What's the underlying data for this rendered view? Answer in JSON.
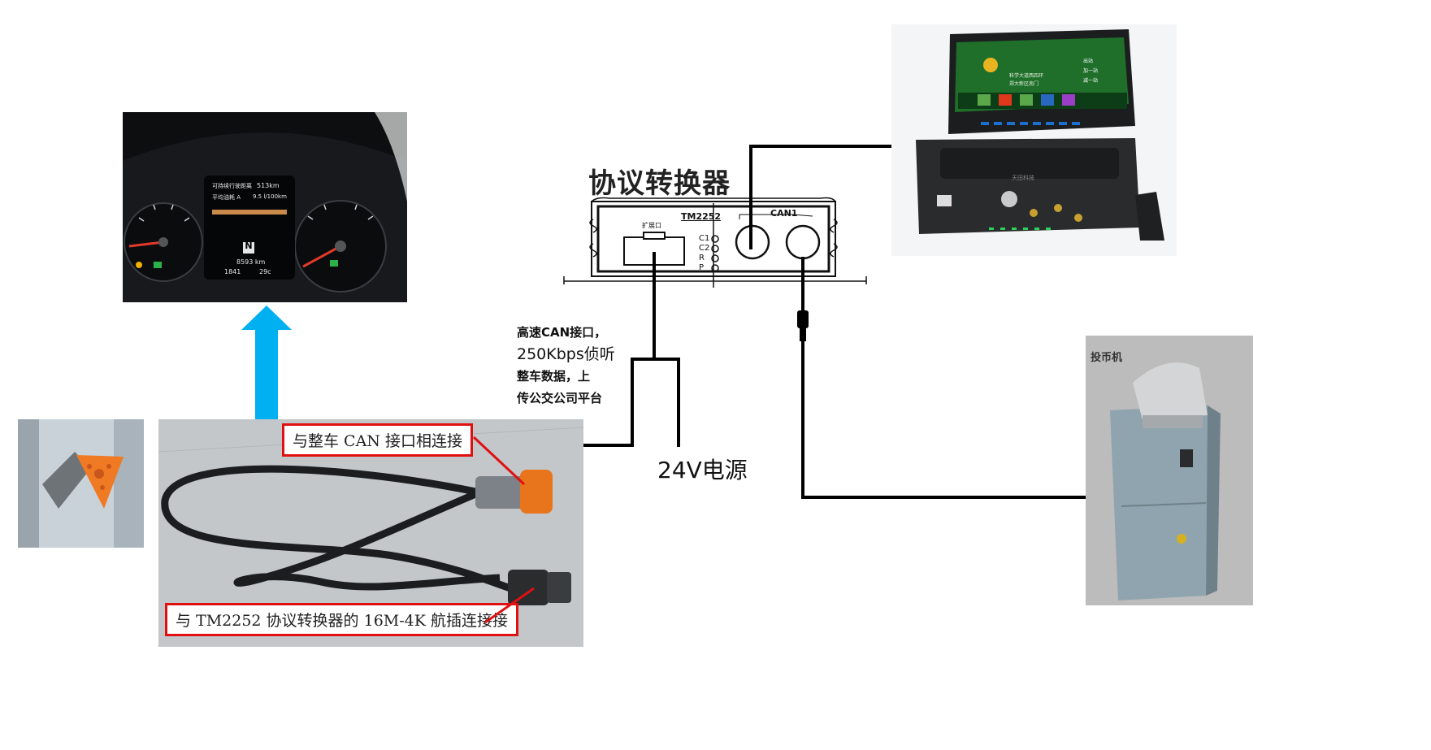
{
  "converter": {
    "title": "协议转换器",
    "model_label": "TM2252",
    "port_expand_label": "扩展口",
    "port_can1_label": "CAN1",
    "led_labels": [
      "C1",
      "C2",
      "R",
      "P"
    ]
  },
  "notes": {
    "can_interface": [
      "高速CAN接口，",
      "250Kbps侦听",
      "整车数据，上",
      "传公交公司平台"
    ],
    "power": "24V电源"
  },
  "cable_photo": {
    "label_top": "与整车 CAN 接口相连接",
    "label_bottom": "与 TM2252 协议转换器的 16M-4K 航插连接接"
  },
  "dashboard": {
    "range_label": "可持续行驶距离",
    "range_value": "513km",
    "fuel_label": "平均油耗 A",
    "fuel_value": "9.5 l/100km",
    "gear": "N",
    "odometer": "8593 km",
    "trip": "1841",
    "temp": "29c"
  },
  "coin_machine": {
    "label": "投币机"
  },
  "mdvr": {
    "brand": "天田科技",
    "screen_rows": [
      "科学大道西四环",
      "郑大新区南门"
    ],
    "buttons": [
      "出站",
      "加一站",
      "减一站"
    ]
  },
  "colors": {
    "arrow": "#00b0f0",
    "label_border": "#e01010",
    "wire": "#000000"
  }
}
